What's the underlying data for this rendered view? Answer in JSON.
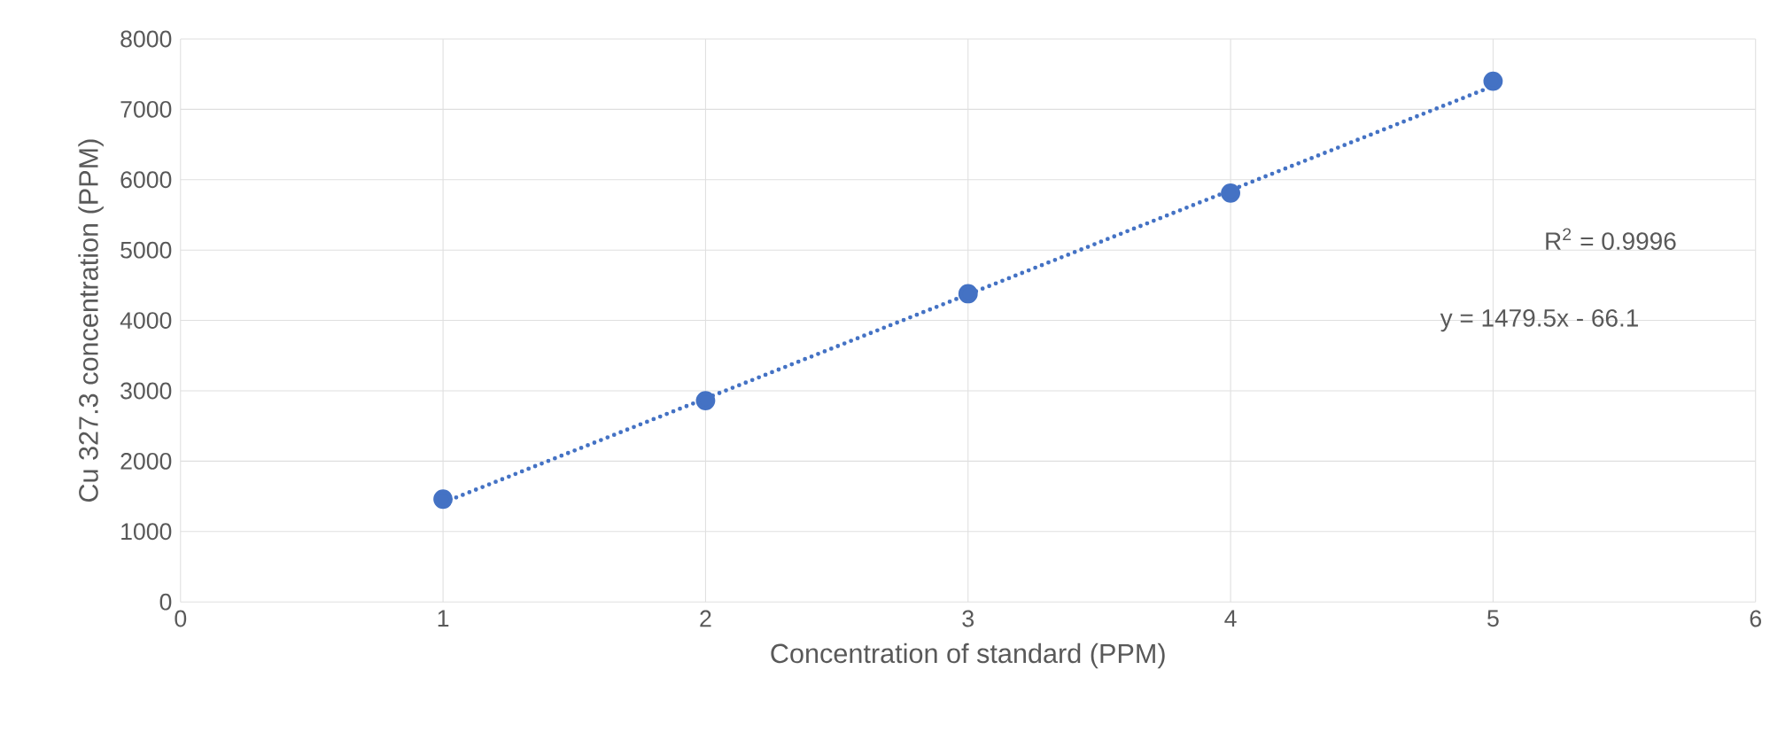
{
  "chart_data": {
    "type": "scatter",
    "xlabel": "Concentration of standard (PPM)",
    "ylabel": "Cu 327.3 concentration (PPM)",
    "x": [
      1,
      2,
      3,
      4,
      5
    ],
    "series": [
      {
        "color": "#4472c4",
        "marker": "circle",
        "values": [
          1460,
          2860,
          4380,
          5810,
          7400
        ]
      },
      {
        "type": "line",
        "color": "#4472c4",
        "marker": "none",
        "line_style": "dotted",
        "x": [
          1,
          5
        ],
        "values": [
          1410,
          7330
        ]
      }
    ],
    "annotations": [
      "R$^{2}$ = 0.9996",
      "y = 1479.5x - 66.1"
    ],
    "xlim": [
      0,
      6
    ],
    "xticks": [
      0,
      1,
      2,
      3,
      4,
      5,
      6
    ],
    "ylim": [
      0,
      8000
    ],
    "yticks": [
      0,
      1000,
      2000,
      3000,
      4000,
      5000,
      6000,
      7000,
      8000
    ],
    "grid": true
  }
}
